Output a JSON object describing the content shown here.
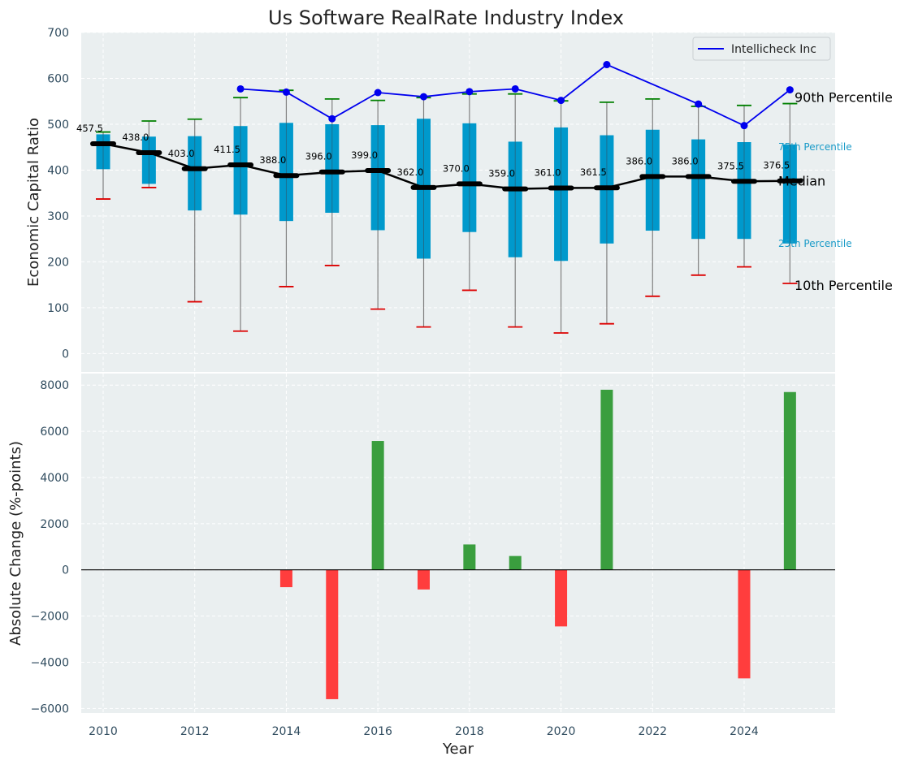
{
  "chart_data": [
    {
      "type": "box",
      "title": "Us Software RealRate Industry Index",
      "ylabel": "Economic Capital Ratio",
      "ylim": [
        -40,
        700
      ],
      "yticks": [
        0,
        100,
        200,
        300,
        400,
        500,
        600,
        700
      ],
      "years": [
        2010,
        2011,
        2012,
        2013,
        2014,
        2015,
        2016,
        2017,
        2018,
        2019,
        2020,
        2021,
        2022,
        2023,
        2024,
        2025
      ],
      "p10": [
        337,
        362,
        113,
        49,
        146,
        192,
        97,
        58,
        138,
        58,
        45,
        65,
        125,
        171,
        189,
        153
      ],
      "p25": [
        402,
        370,
        312,
        303,
        289,
        307,
        269,
        207,
        265,
        210,
        202,
        240,
        268,
        250,
        250,
        240
      ],
      "median": [
        457.5,
        438.0,
        403.0,
        411.5,
        388.0,
        396.0,
        399.0,
        362.0,
        370.0,
        359.0,
        361.0,
        361.5,
        386.0,
        386.0,
        375.5,
        376.5
      ],
      "median_labels": [
        "457.5",
        "438.0",
        "403.0",
        "411.5",
        "388.0",
        "396.0",
        "399.0",
        "362.0",
        "370.0",
        "359.0",
        "361.0",
        "361.5",
        "386.0",
        "386.0",
        "375.5",
        "376.5"
      ],
      "p75": [
        478,
        473,
        474,
        496,
        503,
        500,
        498,
        512,
        502,
        462,
        493,
        476,
        488,
        467,
        461,
        456
      ],
      "p90": [
        483,
        507,
        511,
        558,
        574,
        555,
        552,
        558,
        566,
        566,
        551,
        548,
        555,
        539,
        541,
        545
      ],
      "series": [
        {
          "name": "Intellicheck Inc",
          "x": [
            2013,
            2014,
            2015,
            2016,
            2017,
            2018,
            2019,
            2020,
            2021,
            2023,
            2024,
            2025
          ],
          "values": [
            577,
            570,
            512,
            569,
            560,
            571,
            577,
            552,
            630,
            544,
            497,
            575
          ],
          "color": "#0000ee"
        }
      ],
      "right_labels": {
        "p90": "90th Percentile",
        "p75": "75th Percentile",
        "median": "Median",
        "p25": "25th Percentile",
        "p10": "10th Percentile"
      },
      "legend": "top-right",
      "grid": true
    },
    {
      "type": "bar",
      "ylabel": "Absolute Change (%-points)",
      "xlabel": "Year",
      "ylim": [
        -6200,
        8500
      ],
      "yticks": [
        -6000,
        -4000,
        -2000,
        0,
        2000,
        4000,
        6000,
        8000
      ],
      "xticks": [
        2010,
        2012,
        2014,
        2016,
        2018,
        2020,
        2022,
        2024
      ],
      "x": [
        2014,
        2015,
        2016,
        2017,
        2018,
        2019,
        2020,
        2021,
        2024,
        2025
      ],
      "values": [
        -750,
        -5600,
        5580,
        -850,
        1100,
        600,
        -2450,
        7800,
        -4700,
        7700
      ],
      "positive_color": "#3a9e3e",
      "negative_color": "#ff3d3d",
      "grid": true
    }
  ],
  "colors": {
    "plot_bg": "#eaeff0",
    "box_fill": "#0099cc",
    "median_line": "#000000",
    "p90_cap": "#008000",
    "p10_cap": "#dd0000",
    "whisker": "#808080"
  }
}
